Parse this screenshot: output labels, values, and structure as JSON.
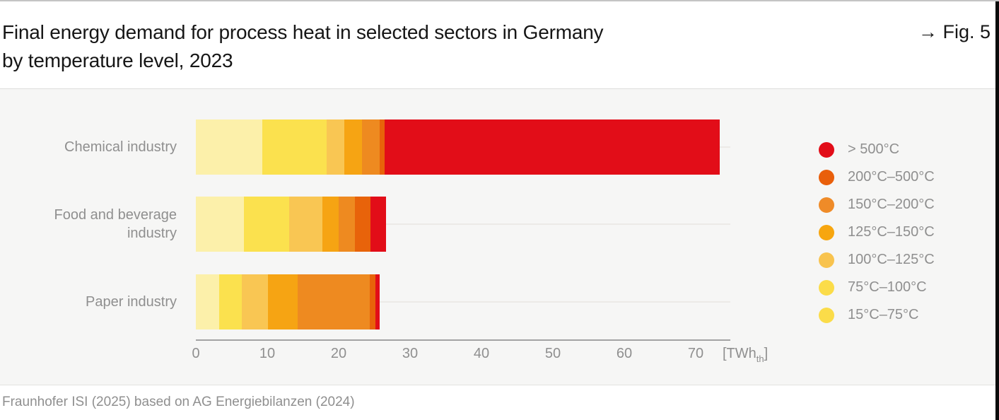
{
  "page": {
    "title_line1": "Final energy demand for process heat in selected sectors in Germany",
    "title_line2": "by temperature level, 2023",
    "figure_label": "→ Fig. 5",
    "source": "Fraunhofer ISI (2025) based on AG Energiebilanzen (2024)"
  },
  "axis": {
    "ticks": [
      "0",
      "10",
      "20",
      "30",
      "40",
      "50",
      "60",
      "70"
    ],
    "unit_prefix": "[TWh",
    "unit_sub": "th",
    "unit_suffix": "]"
  },
  "legend": [
    {
      "label": "> 500°C",
      "color": "#e20d18"
    },
    {
      "label": "200°C–500°C",
      "color": "#e95f0b"
    },
    {
      "label": "150°C–200°C",
      "color": "#ef8b28"
    },
    {
      "label": "125°C–150°C",
      "color": "#f7a60f"
    },
    {
      "label": "100°C–125°C",
      "color": "#f8c34e"
    },
    {
      "label": "75°C–100°C",
      "color": "#fbdc49"
    },
    {
      "label": "15°C–75°C",
      "color": "#fbdc49"
    }
  ],
  "chart_data": {
    "type": "bar",
    "orientation": "horizontal",
    "stacked": true,
    "title": "Final energy demand for process heat in selected sectors in Germany by temperature level, 2023",
    "categories": [
      "Chemical industry",
      "Food and beverage industry",
      "Paper industry"
    ],
    "series": [
      {
        "name": "15°C–75°C",
        "values": [
          9.3,
          6.7,
          3.3
        ],
        "bar_color": "#fcf0aa"
      },
      {
        "name": "75°C–100°C",
        "values": [
          9.0,
          6.4,
          3.1
        ],
        "bar_color": "#fbe14e"
      },
      {
        "name": "100°C–125°C",
        "values": [
          2.5,
          4.6,
          3.7
        ],
        "bar_color": "#f9c653"
      },
      {
        "name": "125°C–150°C",
        "values": [
          2.5,
          2.3,
          4.2
        ],
        "bar_color": "#f6a413"
      },
      {
        "name": "150°C–200°C",
        "values": [
          2.4,
          2.3,
          10.1
        ],
        "bar_color": "#ee8a20"
      },
      {
        "name": "200°C–500°C",
        "values": [
          0.7,
          2.2,
          0.8
        ],
        "bar_color": "#e8630a"
      },
      {
        "name": "> 500°C",
        "values": [
          47.0,
          2.1,
          0.5
        ],
        "bar_color": "#e20d18"
      }
    ],
    "totals": [
      73.5,
      26.6,
      25.7
    ],
    "xlim": [
      0,
      75
    ],
    "xticks": [
      0,
      10,
      20,
      30,
      40,
      50,
      60,
      70
    ],
    "xlabel": "[TWh_th]",
    "grid": "horizontal-row-guides",
    "legend_position": "right",
    "legend_order_top_to_bottom": [
      "> 500°C",
      "200°C–500°C",
      "150°C–200°C",
      "125°C–150°C",
      "100°C–125°C",
      "75°C–100°C",
      "15°C–75°C"
    ]
  }
}
